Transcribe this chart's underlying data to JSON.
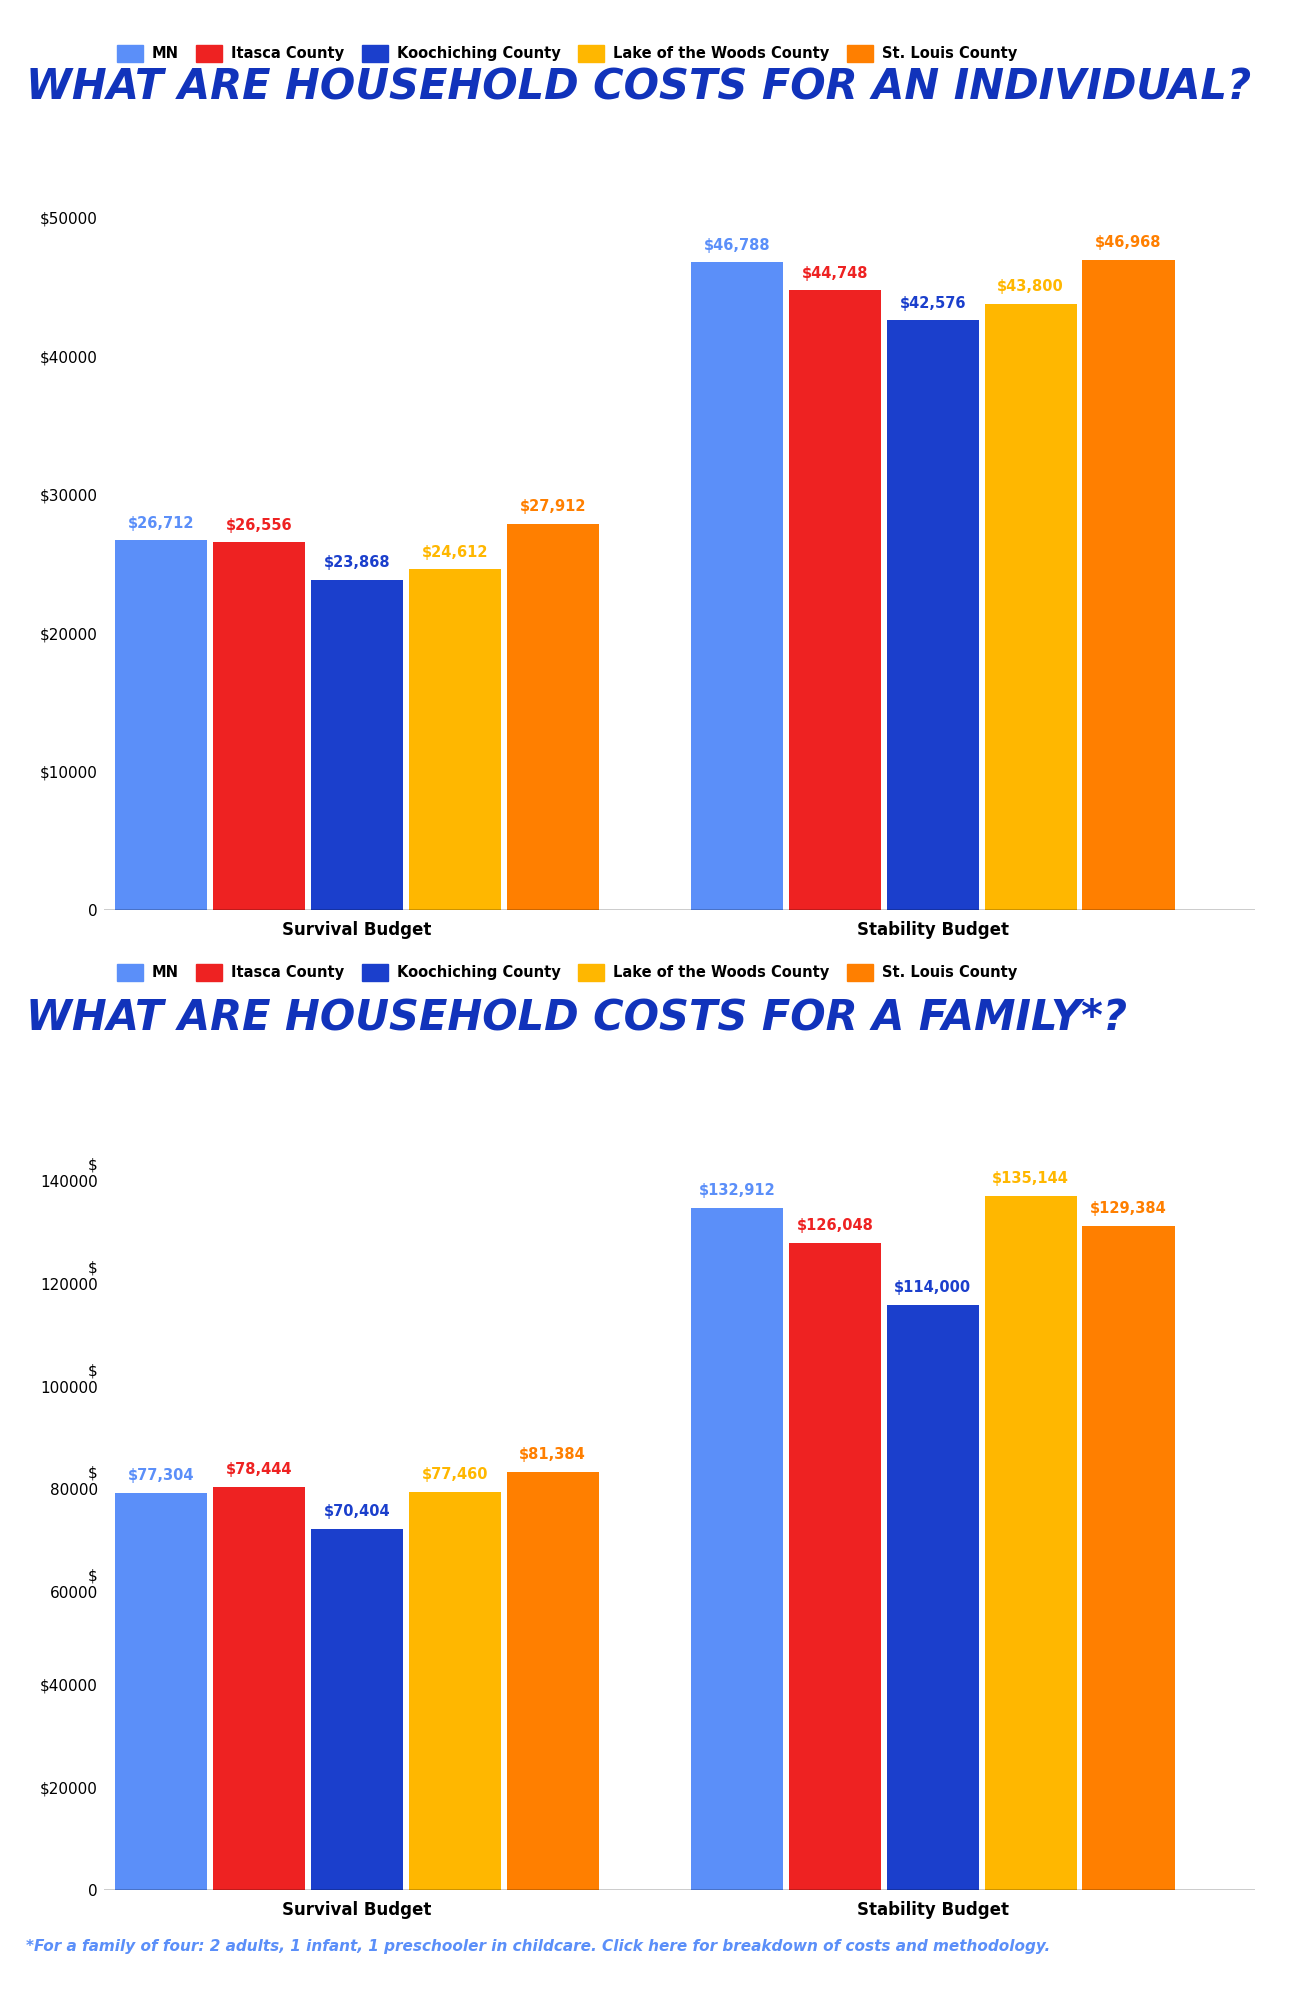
{
  "title1": "WHAT ARE HOUSEHOLD COSTS FOR AN INDIVIDUAL?",
  "title2": "WHAT ARE HOUSEHOLD COSTS FOR A FAMILY*?",
  "footnote": "*For a family of four: 2 adults, 1 infant, 1 preschooler in childcare. Click here for breakdown of costs and methodology.",
  "legend_labels": [
    "MN",
    "Itasca County",
    "Koochiching County",
    "Lake of the Woods County",
    "St. Louis County"
  ],
  "colors": [
    "#5B8FF9",
    "#EE2222",
    "#1B3FCC",
    "#FFB700",
    "#FF7F00"
  ],
  "individual": {
    "survival": [
      26712,
      26556,
      23868,
      24612,
      27912
    ],
    "stability": [
      46788,
      44748,
      42576,
      43800,
      46968
    ]
  },
  "family": {
    "survival": [
      77304,
      78444,
      70404,
      77460,
      81384
    ],
    "stability": [
      132912,
      126048,
      114000,
      135144,
      129384
    ]
  },
  "xlabel_survival": "Survival Budget",
  "xlabel_stability": "Stability Budget",
  "title_color": "#1133BB",
  "footnote_color": "#5B8FF9",
  "bg_color": "#FFFFFF"
}
